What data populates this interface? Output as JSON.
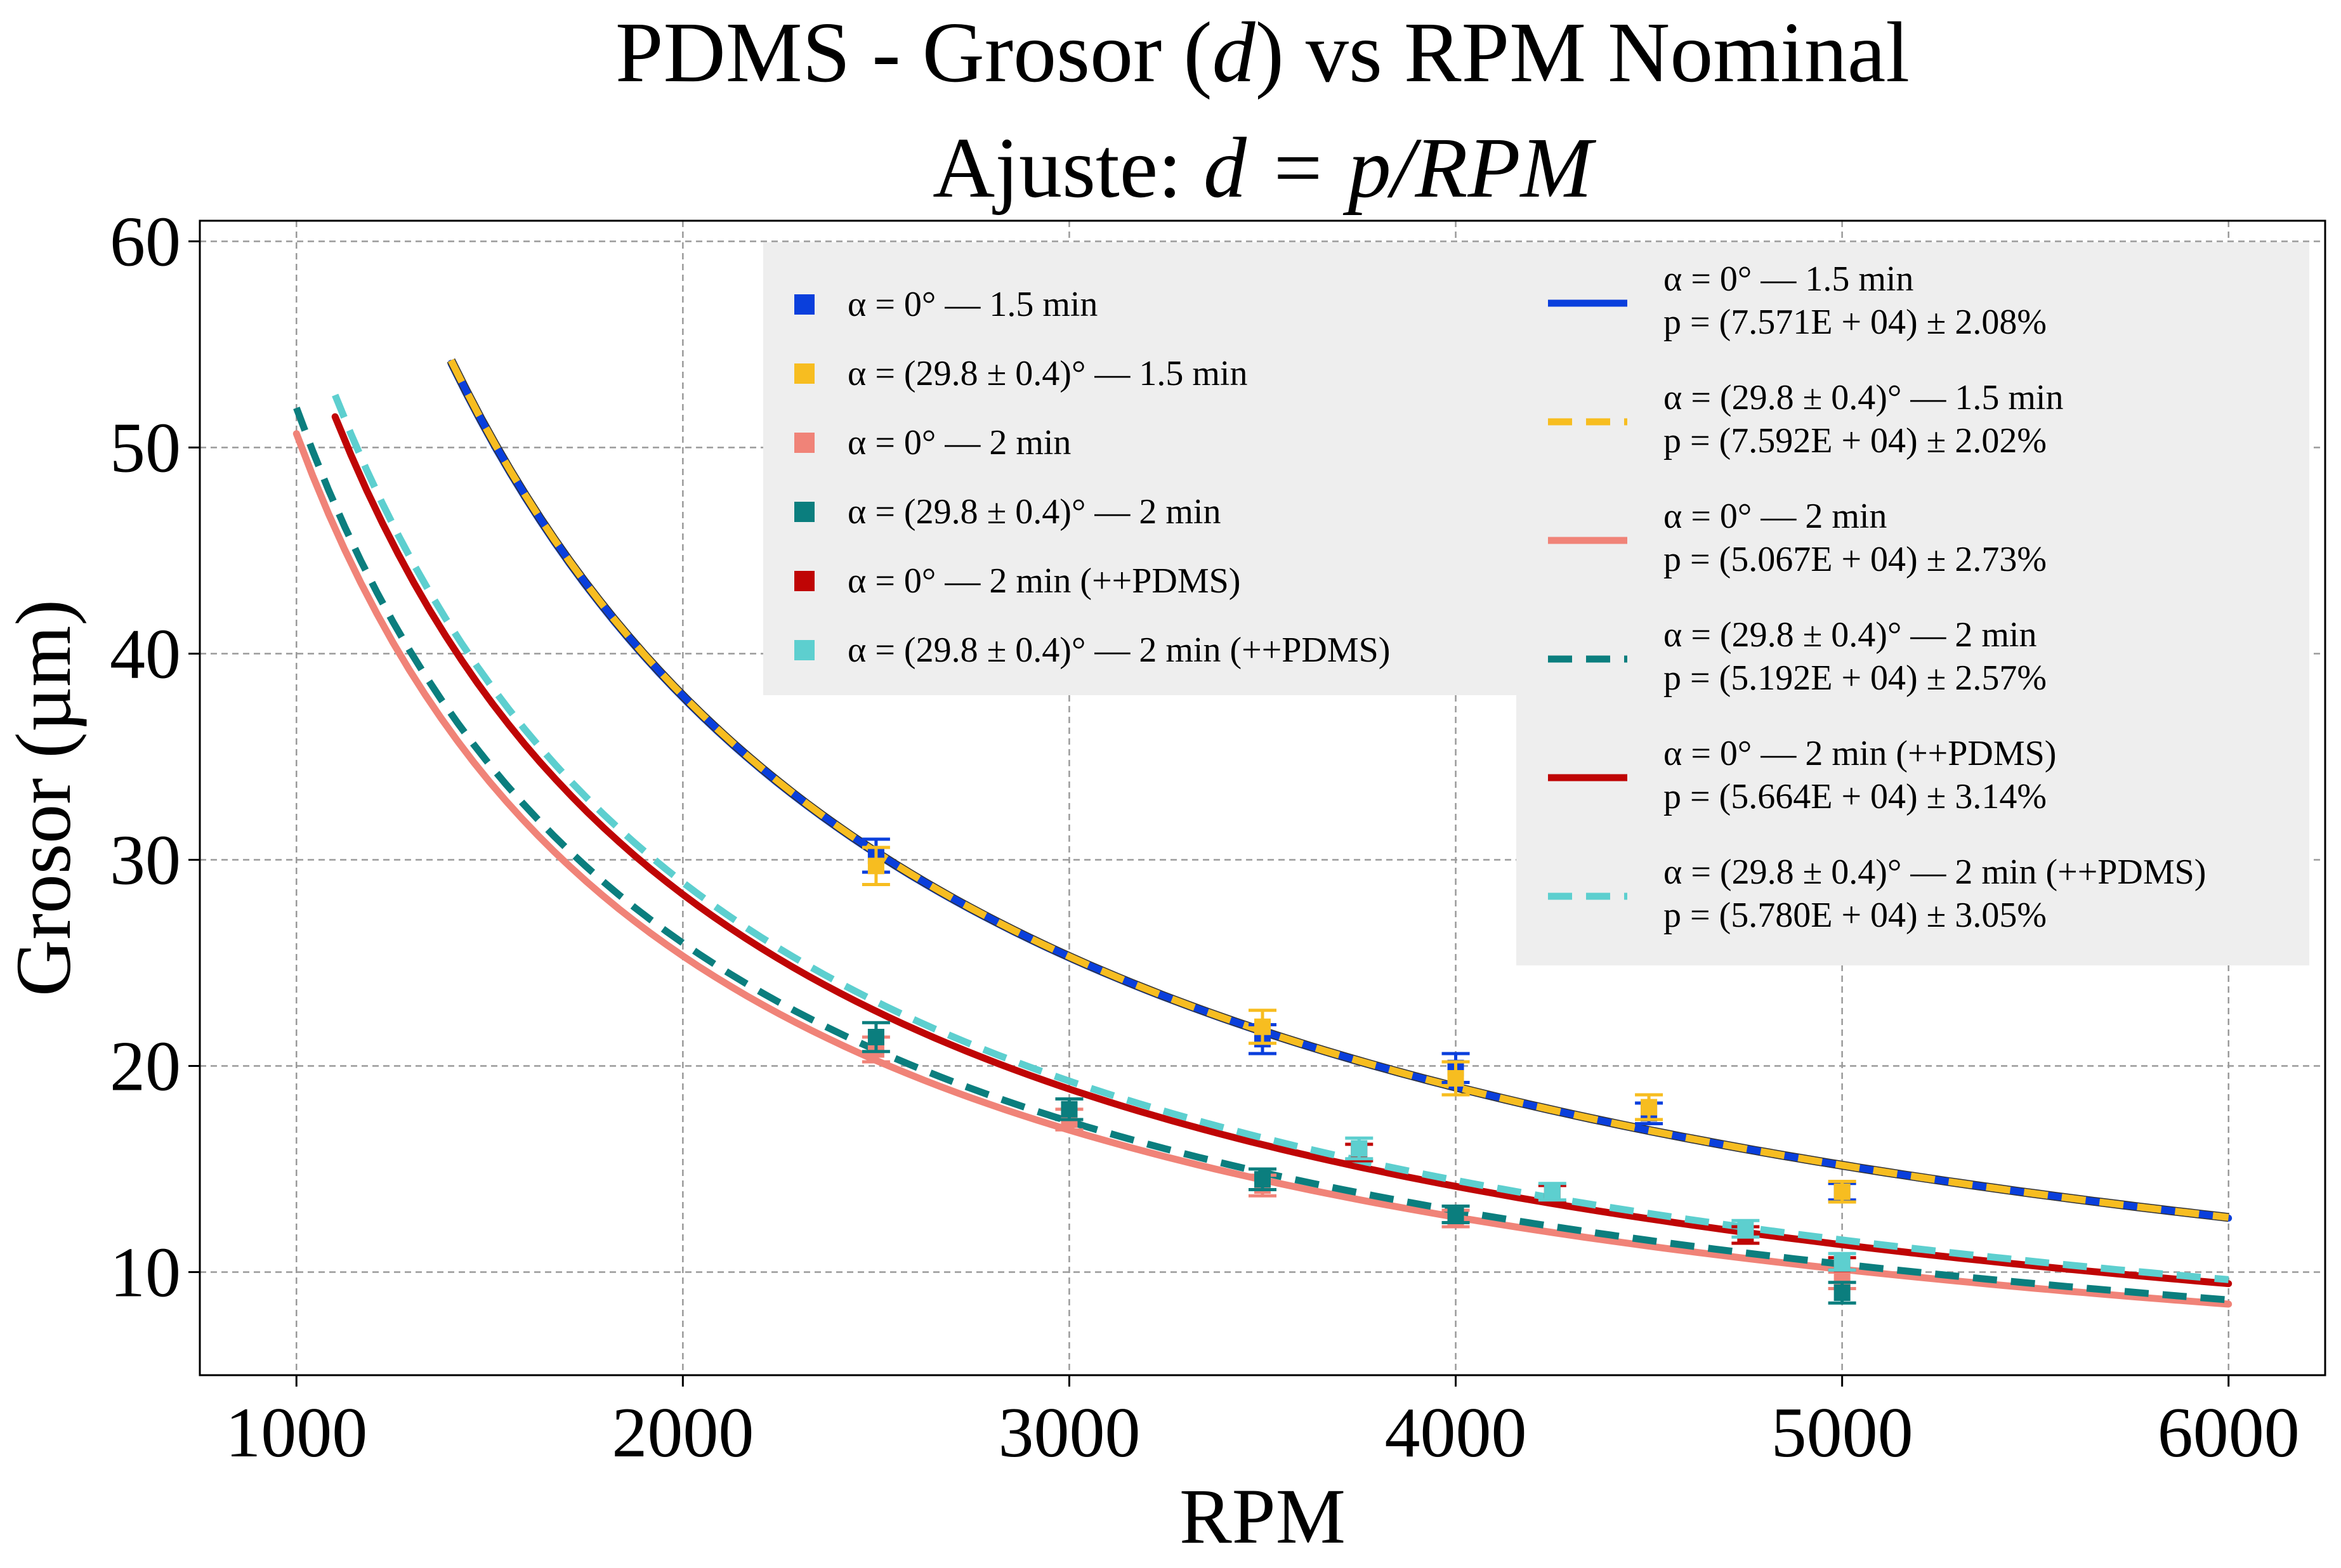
{
  "title": {
    "line1_prefix": "PDMS - Grosor (",
    "line1_var": "d",
    "line1_suffix": ") vs RPM Nominal",
    "line2_prefix": "Ajuste: ",
    "line2_formula": "d = p/RPM"
  },
  "colors": {
    "blue": "#0a3fdc",
    "gold": "#f7bd20",
    "salmon": "#f08378",
    "teal": "#0b7e7e",
    "darkred": "#bf0505",
    "cyan": "#5dcfcf",
    "legend_bg": "#eeeeee",
    "grid": "#9a9a9a"
  },
  "chart_data": {
    "type": "scatter",
    "xlabel": "RPM",
    "ylabel": "Grosor (µm)",
    "xlim": [
      750,
      6250
    ],
    "ylim": [
      5,
      61
    ],
    "xticks": [
      "1000",
      "2000",
      "3000",
      "4000",
      "5000",
      "6000"
    ],
    "yticks": [
      "10",
      "20",
      "30",
      "40",
      "50",
      "60"
    ],
    "grid": true,
    "legend_placement": "upper-right",
    "marker_legend": [
      "α = 0° — 1.5 min",
      "α = (29.8 ± 0.4)° — 1.5 min",
      "α = 0° — 2 min",
      "α = (29.8 ± 0.4)° — 2 min",
      "α = 0° — 2 min (++PDMS)",
      "α = (29.8 ± 0.4)° — 2 min (++PDMS)"
    ],
    "fit_legend": [
      {
        "label": "α = 0° — 1.5 min",
        "param": "p = (7.571E + 04) ± 2.08%"
      },
      {
        "label": "α = (29.8 ± 0.4)° — 1.5 min",
        "param": "p = (7.592E + 04) ± 2.02%"
      },
      {
        "label": "α = 0° — 2 min",
        "param": "p = (5.067E + 04) ± 2.73%"
      },
      {
        "label": "α = (29.8 ± 0.4)° — 2 min",
        "param": "p = (5.192E + 04) ± 2.57%"
      },
      {
        "label": "α = 0° — 2 min (++PDMS)",
        "param": "p = (5.664E + 04) ± 3.14%"
      },
      {
        "label": "α = (29.8 ± 0.4)° — 2 min (++PDMS)",
        "param": "p = (5.780E + 04) ± 3.05%"
      }
    ],
    "series": [
      {
        "name": "α = 0° — 1.5 min",
        "color": "#0a3fdc",
        "p": 75710,
        "fit_range": [
          1400,
          6000
        ],
        "dash": false,
        "points": [
          [
            2500,
            30.2,
            0.8
          ],
          [
            3500,
            21.3,
            0.7
          ],
          [
            4000,
            19.9,
            0.7
          ],
          [
            4500,
            17.7,
            0.5
          ],
          [
            5000,
            13.9,
            0.4
          ]
        ]
      },
      {
        "name": "α = (29.8 ± 0.4)° — 1.5 min",
        "color": "#f7bd20",
        "p": 75920,
        "fit_range": [
          1400,
          6000
        ],
        "dash": true,
        "points": [
          [
            2500,
            29.7,
            0.9
          ],
          [
            3500,
            21.9,
            0.8
          ],
          [
            4000,
            19.4,
            0.8
          ],
          [
            4500,
            18.0,
            0.6
          ],
          [
            5000,
            13.9,
            0.5
          ]
        ]
      },
      {
        "name": "α = 0° — 2 min",
        "color": "#f08378",
        "p": 50670,
        "fit_range": [
          1000,
          6000
        ],
        "dash": false,
        "points": [
          [
            2500,
            20.8,
            0.6
          ],
          [
            3000,
            17.4,
            0.5
          ],
          [
            3500,
            14.2,
            0.5
          ],
          [
            4000,
            12.6,
            0.4
          ],
          [
            5000,
            9.6,
            0.4
          ]
        ]
      },
      {
        "name": "α = (29.8 ± 0.4)° — 2 min",
        "color": "#0b7e7e",
        "p": 51920,
        "fit_range": [
          1000,
          6000
        ],
        "dash": true,
        "points": [
          [
            2500,
            21.4,
            0.7
          ],
          [
            3000,
            17.9,
            0.5
          ],
          [
            3500,
            14.5,
            0.5
          ],
          [
            4000,
            12.8,
            0.4
          ],
          [
            5000,
            9.0,
            0.5
          ]
        ]
      },
      {
        "name": "α = 0° — 2 min (++PDMS)",
        "color": "#bf0505",
        "p": 56640,
        "fit_range": [
          1100,
          6000
        ],
        "dash": false,
        "points": [
          [
            3750,
            15.8,
            0.4
          ],
          [
            4250,
            13.8,
            0.4
          ],
          [
            4750,
            11.8,
            0.4
          ],
          [
            5000,
            10.4,
            0.3
          ]
        ]
      },
      {
        "name": "α = (29.8 ± 0.4)° — 2 min (++PDMS)",
        "color": "#5dcfcf",
        "p": 57800,
        "fit_range": [
          1100,
          6000
        ],
        "dash": true,
        "points": [
          [
            3750,
            16.0,
            0.5
          ],
          [
            4250,
            13.9,
            0.4
          ],
          [
            4750,
            12.1,
            0.4
          ],
          [
            5000,
            10.5,
            0.4
          ]
        ]
      }
    ]
  }
}
